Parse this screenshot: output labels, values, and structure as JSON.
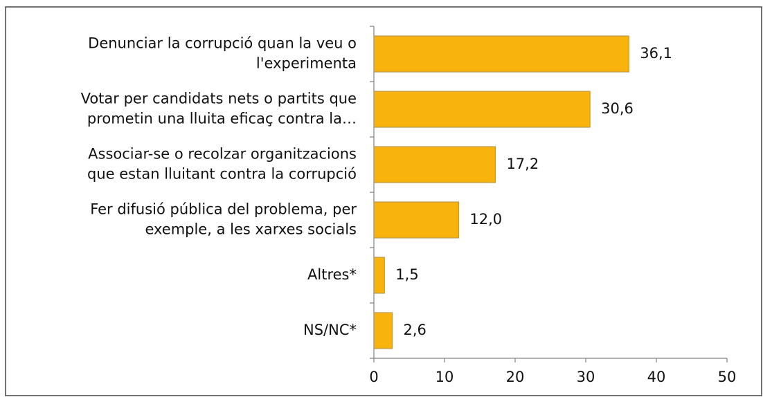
{
  "chart_data": {
    "type": "hbar",
    "categories": [
      "Denunciar la corrupció quan la veu o\nl'experimenta",
      "Votar per candidats nets o partits que\nprometin una lluita eficaç contra la…",
      "Associar-se o recolzar organitzacions\nque estan lluitant contra la corrupció",
      "Fer difusió pública del problema, per\nexemple, a les xarxes socials",
      "Altres*",
      "NS/NC*"
    ],
    "values": [
      36.1,
      30.6,
      17.2,
      12.0,
      1.5,
      2.6
    ],
    "value_labels": [
      "36,1",
      "30,6",
      "17,2",
      "12,0",
      "1,5",
      "2,6"
    ],
    "color": "#f8b30c",
    "xlim": [
      0,
      50
    ],
    "xticks": [
      0,
      10,
      20,
      30,
      40,
      50
    ],
    "grid": false
  }
}
